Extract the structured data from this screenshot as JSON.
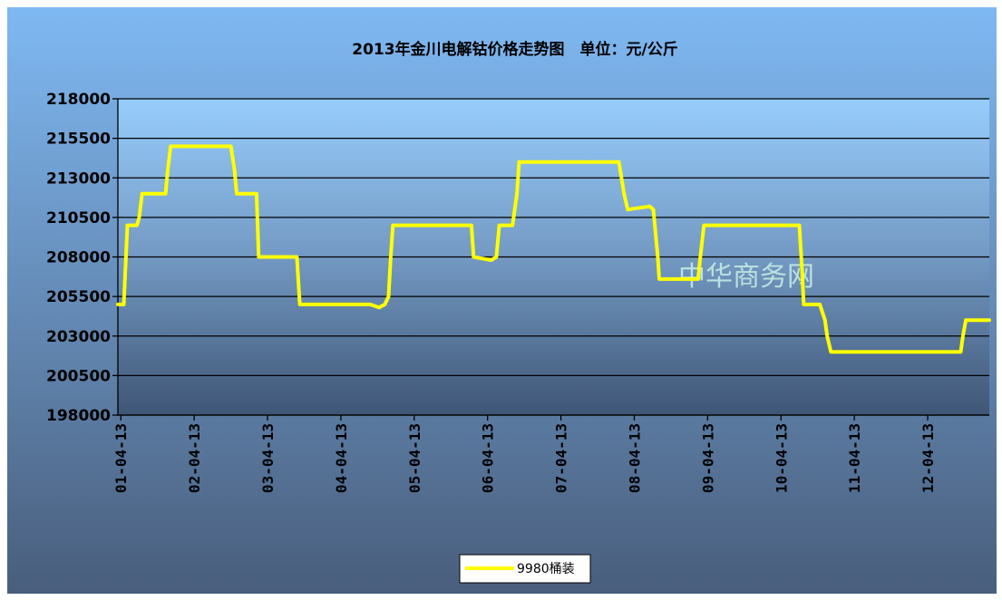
{
  "chart_data": {
    "type": "line",
    "title": "2013年金川电解钴价格走势图　单位：元/公斤",
    "xlabel": "",
    "ylabel": "",
    "ylim": [
      198000,
      218000
    ],
    "yticks": [
      198000,
      200500,
      203000,
      205500,
      208000,
      210500,
      213000,
      215500,
      218000
    ],
    "x_tick_labels": [
      "01-04-13",
      "02-04-13",
      "03-04-13",
      "04-04-13",
      "05-04-13",
      "06-04-13",
      "07-04-13",
      "08-04-13",
      "09-04-13",
      "10-04-13",
      "11-04-13",
      "12-04-13"
    ],
    "x_unit": "months since 01-04-13",
    "xlim": [
      -0.04,
      11.84
    ],
    "grid": true,
    "legend_position": "bottom-center",
    "watermark": "中华商务网",
    "series": [
      {
        "name": "9980桶装",
        "color": "#ffff00",
        "points": [
          [
            -0.04,
            205000
          ],
          [
            0.04,
            205000
          ],
          [
            0.07,
            208000
          ],
          [
            0.09,
            210000
          ],
          [
            0.22,
            210000
          ],
          [
            0.25,
            210500
          ],
          [
            0.29,
            212000
          ],
          [
            0.61,
            212000
          ],
          [
            0.64,
            213500
          ],
          [
            0.68,
            215000
          ],
          [
            1.44,
            215000
          ],
          [
            1.5,
            215000
          ],
          [
            1.55,
            213500
          ],
          [
            1.58,
            212000
          ],
          [
            1.85,
            212000
          ],
          [
            1.88,
            208000
          ],
          [
            2.4,
            208000
          ],
          [
            2.42,
            206500
          ],
          [
            2.44,
            205000
          ],
          [
            3.4,
            205000
          ],
          [
            3.52,
            204800
          ],
          [
            3.6,
            205000
          ],
          [
            3.65,
            205500
          ],
          [
            3.68,
            208000
          ],
          [
            3.71,
            210000
          ],
          [
            4.72,
            210000
          ],
          [
            4.78,
            210000
          ],
          [
            4.81,
            208000
          ],
          [
            5.05,
            207800
          ],
          [
            5.12,
            208000
          ],
          [
            5.16,
            210000
          ],
          [
            5.34,
            210000
          ],
          [
            5.4,
            212000
          ],
          [
            5.43,
            214000
          ],
          [
            6.79,
            214000
          ],
          [
            6.86,
            212000
          ],
          [
            6.91,
            211000
          ],
          [
            7.21,
            211200
          ],
          [
            7.26,
            211000
          ],
          [
            7.32,
            208000
          ],
          [
            7.34,
            206600
          ],
          [
            7.87,
            206600
          ],
          [
            7.9,
            208000
          ],
          [
            7.95,
            210000
          ],
          [
            9.25,
            210000
          ],
          [
            9.29,
            207000
          ],
          [
            9.31,
            205000
          ],
          [
            9.53,
            205000
          ],
          [
            9.6,
            204000
          ],
          [
            9.63,
            203000
          ],
          [
            9.68,
            202000
          ],
          [
            11.45,
            202000
          ],
          [
            11.48,
            203000
          ],
          [
            11.52,
            204000
          ],
          [
            11.84,
            204000
          ]
        ]
      }
    ]
  }
}
